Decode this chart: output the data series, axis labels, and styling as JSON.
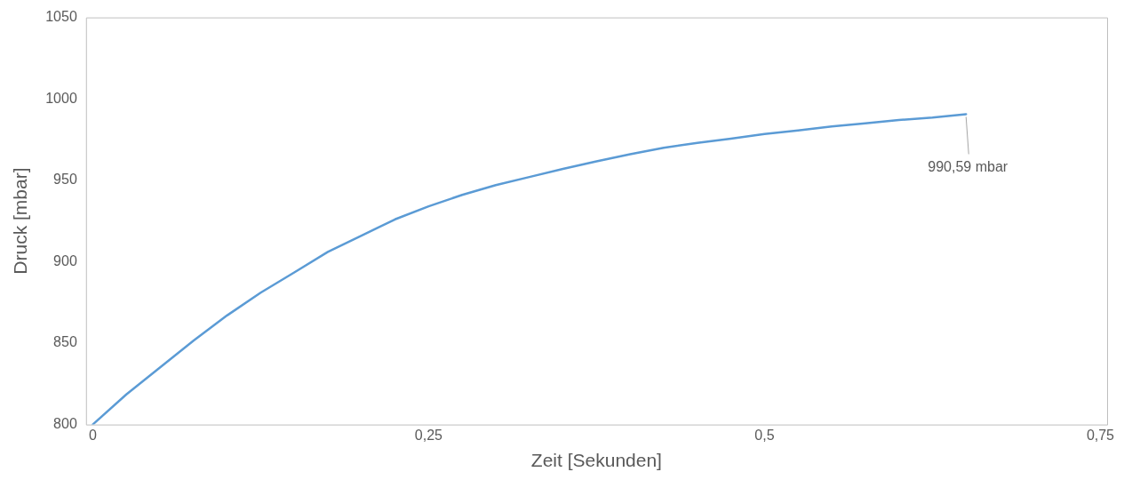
{
  "chart_data": {
    "type": "line",
    "xlabel": "Zeit [Sekunden]",
    "ylabel": "Druck [mbar]",
    "x": [
      0,
      0.025,
      0.05,
      0.075,
      0.1,
      0.125,
      0.15,
      0.175,
      0.2,
      0.225,
      0.25,
      0.275,
      0.3,
      0.325,
      0.35,
      0.375,
      0.4,
      0.425,
      0.45,
      0.475,
      0.5,
      0.525,
      0.55,
      0.575,
      0.6,
      0.625,
      0.65
    ],
    "series": [
      {
        "color": "#5b9bd5",
        "values": [
          800,
          818.5,
          835,
          851.5,
          867,
          881,
          893.4,
          906,
          916,
          926,
          934,
          941,
          947,
          952,
          957,
          961.6,
          966,
          970,
          973,
          975.6,
          978.4,
          980.6,
          983,
          985,
          987,
          988.5,
          990.59
        ]
      }
    ],
    "xlim": [
      -0.005,
      0.755
    ],
    "xticks": [
      0,
      {
        "value": 0.25,
        "label": "0,25"
      },
      {
        "value": 0.5,
        "label": "0,5"
      },
      {
        "value": 0.75,
        "label": "0,75"
      }
    ],
    "ylim": [
      800,
      1050
    ],
    "yticks": [
      800,
      850,
      900,
      950,
      1000,
      1050
    ],
    "annotations": [
      {
        "text": "990,59 mbar",
        "x": 0.65,
        "y": 990.59
      }
    ],
    "grid": false,
    "legend": false,
    "marker": "none",
    "line_style": "solid"
  }
}
